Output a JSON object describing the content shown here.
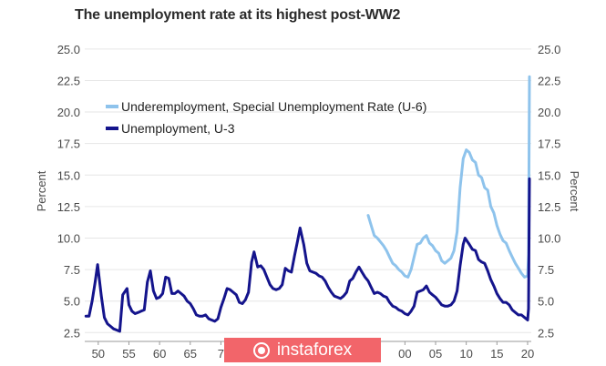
{
  "chart_data": {
    "type": "line",
    "title": "The unemployment rate at its highest post-WW2",
    "ylabel_left": "Percent",
    "ylabel_right": "Percent",
    "ylim": [
      1.8,
      26.0
    ],
    "xlim": [
      1947.8,
      2020.6
    ],
    "y_ticks": [
      "2.5",
      "5.0",
      "7.5",
      "10.0",
      "12.5",
      "15.0",
      "17.5",
      "20.0",
      "22.5",
      "25.0"
    ],
    "x_ticks": [
      {
        "value": 1950,
        "label": "50"
      },
      {
        "value": 1955,
        "label": "55"
      },
      {
        "value": 1960,
        "label": "60"
      },
      {
        "value": 1965,
        "label": "65"
      },
      {
        "value": 1970,
        "label": "7"
      },
      {
        "value": 2000,
        "label": "00"
      },
      {
        "value": 2005,
        "label": "05"
      },
      {
        "value": 2010,
        "label": "10"
      },
      {
        "value": 2015,
        "label": "15"
      },
      {
        "value": 2020,
        "label": "20"
      }
    ],
    "grid": true,
    "legend_position": "top-left",
    "series": [
      {
        "name": "Underemployment, Special Unemployment Rate (U-6)",
        "color": "#8ec3ec",
        "points": [
          [
            1994.0,
            11.8
          ],
          [
            1994.5,
            11.0
          ],
          [
            1995.0,
            10.2
          ],
          [
            1995.5,
            10.0
          ],
          [
            1996.0,
            9.7
          ],
          [
            1996.5,
            9.4
          ],
          [
            1997.0,
            9.0
          ],
          [
            1997.5,
            8.5
          ],
          [
            1998.0,
            8.0
          ],
          [
            1998.5,
            7.8
          ],
          [
            1999.0,
            7.5
          ],
          [
            1999.5,
            7.3
          ],
          [
            2000.0,
            7.0
          ],
          [
            2000.5,
            6.9
          ],
          [
            2001.0,
            7.5
          ],
          [
            2001.5,
            8.5
          ],
          [
            2002.0,
            9.5
          ],
          [
            2002.5,
            9.6
          ],
          [
            2003.0,
            10.0
          ],
          [
            2003.5,
            10.2
          ],
          [
            2004.0,
            9.6
          ],
          [
            2004.5,
            9.4
          ],
          [
            2005.0,
            9.0
          ],
          [
            2005.5,
            8.8
          ],
          [
            2006.0,
            8.2
          ],
          [
            2006.5,
            8.0
          ],
          [
            2007.0,
            8.2
          ],
          [
            2007.5,
            8.4
          ],
          [
            2008.0,
            9.0
          ],
          [
            2008.5,
            10.5
          ],
          [
            2009.0,
            14.0
          ],
          [
            2009.5,
            16.3
          ],
          [
            2010.0,
            17.0
          ],
          [
            2010.5,
            16.8
          ],
          [
            2011.0,
            16.2
          ],
          [
            2011.5,
            16.0
          ],
          [
            2012.0,
            15.0
          ],
          [
            2012.5,
            14.8
          ],
          [
            2013.0,
            14.0
          ],
          [
            2013.5,
            13.8
          ],
          [
            2014.0,
            12.5
          ],
          [
            2014.5,
            12.0
          ],
          [
            2015.0,
            11.0
          ],
          [
            2015.5,
            10.3
          ],
          [
            2016.0,
            9.8
          ],
          [
            2016.5,
            9.6
          ],
          [
            2017.0,
            9.0
          ],
          [
            2017.5,
            8.5
          ],
          [
            2018.0,
            8.0
          ],
          [
            2018.5,
            7.6
          ],
          [
            2019.0,
            7.2
          ],
          [
            2019.5,
            6.9
          ],
          [
            2020.0,
            7.0
          ],
          [
            2020.15,
            8.7
          ],
          [
            2020.3,
            22.8
          ]
        ]
      },
      {
        "name": "Unemployment, U-3",
        "color": "#14148c",
        "points": [
          [
            1948.0,
            3.8
          ],
          [
            1948.5,
            3.8
          ],
          [
            1949.0,
            5.0
          ],
          [
            1949.5,
            6.5
          ],
          [
            1949.9,
            7.9
          ],
          [
            1950.5,
            5.4
          ],
          [
            1951.0,
            3.7
          ],
          [
            1951.5,
            3.2
          ],
          [
            1952.0,
            3.0
          ],
          [
            1952.5,
            2.8
          ],
          [
            1953.0,
            2.7
          ],
          [
            1953.5,
            2.6
          ],
          [
            1954.0,
            5.5
          ],
          [
            1954.7,
            6.0
          ],
          [
            1955.0,
            4.7
          ],
          [
            1955.5,
            4.2
          ],
          [
            1956.0,
            4.0
          ],
          [
            1956.5,
            4.1
          ],
          [
            1957.0,
            4.2
          ],
          [
            1957.5,
            4.3
          ],
          [
            1958.0,
            6.5
          ],
          [
            1958.5,
            7.4
          ],
          [
            1959.0,
            5.8
          ],
          [
            1959.5,
            5.2
          ],
          [
            1960.0,
            5.3
          ],
          [
            1960.5,
            5.6
          ],
          [
            1961.0,
            6.9
          ],
          [
            1961.5,
            6.8
          ],
          [
            1962.0,
            5.6
          ],
          [
            1962.5,
            5.6
          ],
          [
            1963.0,
            5.8
          ],
          [
            1963.5,
            5.6
          ],
          [
            1964.0,
            5.4
          ],
          [
            1964.5,
            5.0
          ],
          [
            1965.0,
            4.8
          ],
          [
            1965.5,
            4.4
          ],
          [
            1966.0,
            3.9
          ],
          [
            1966.5,
            3.8
          ],
          [
            1967.0,
            3.8
          ],
          [
            1967.5,
            3.9
          ],
          [
            1968.0,
            3.6
          ],
          [
            1968.5,
            3.5
          ],
          [
            1969.0,
            3.4
          ],
          [
            1969.5,
            3.6
          ],
          [
            1970.0,
            4.5
          ],
          [
            1970.5,
            5.2
          ],
          [
            1971.0,
            6.0
          ],
          [
            1971.5,
            5.9
          ],
          [
            1972.0,
            5.7
          ],
          [
            1972.5,
            5.5
          ],
          [
            1973.0,
            4.9
          ],
          [
            1973.5,
            4.8
          ],
          [
            1974.0,
            5.1
          ],
          [
            1974.5,
            5.7
          ],
          [
            1975.0,
            8.1
          ],
          [
            1975.4,
            8.9
          ],
          [
            1976.0,
            7.7
          ],
          [
            1976.5,
            7.8
          ],
          [
            1977.0,
            7.5
          ],
          [
            1977.5,
            6.9
          ],
          [
            1978.0,
            6.3
          ],
          [
            1978.5,
            6.0
          ],
          [
            1979.0,
            5.9
          ],
          [
            1979.5,
            6.0
          ],
          [
            1980.0,
            6.3
          ],
          [
            1980.5,
            7.6
          ],
          [
            1981.0,
            7.4
          ],
          [
            1981.5,
            7.3
          ],
          [
            1982.0,
            8.6
          ],
          [
            1982.5,
            9.8
          ],
          [
            1982.9,
            10.8
          ],
          [
            1983.5,
            9.5
          ],
          [
            1984.0,
            8.0
          ],
          [
            1984.5,
            7.4
          ],
          [
            1985.0,
            7.3
          ],
          [
            1985.5,
            7.2
          ],
          [
            1986.0,
            7.0
          ],
          [
            1986.5,
            6.9
          ],
          [
            1987.0,
            6.6
          ],
          [
            1987.5,
            6.1
          ],
          [
            1988.0,
            5.7
          ],
          [
            1988.5,
            5.4
          ],
          [
            1989.0,
            5.3
          ],
          [
            1989.5,
            5.2
          ],
          [
            1990.0,
            5.4
          ],
          [
            1990.5,
            5.7
          ],
          [
            1991.0,
            6.6
          ],
          [
            1991.5,
            6.8
          ],
          [
            1992.0,
            7.3
          ],
          [
            1992.5,
            7.7
          ],
          [
            1993.0,
            7.3
          ],
          [
            1993.5,
            6.9
          ],
          [
            1994.0,
            6.6
          ],
          [
            1994.5,
            6.1
          ],
          [
            1995.0,
            5.6
          ],
          [
            1995.5,
            5.7
          ],
          [
            1996.0,
            5.6
          ],
          [
            1996.5,
            5.4
          ],
          [
            1997.0,
            5.3
          ],
          [
            1997.5,
            4.9
          ],
          [
            1998.0,
            4.6
          ],
          [
            1998.5,
            4.5
          ],
          [
            1999.0,
            4.3
          ],
          [
            1999.5,
            4.2
          ],
          [
            2000.0,
            4.0
          ],
          [
            2000.5,
            3.9
          ],
          [
            2001.0,
            4.2
          ],
          [
            2001.5,
            4.6
          ],
          [
            2002.0,
            5.7
          ],
          [
            2002.5,
            5.8
          ],
          [
            2003.0,
            5.9
          ],
          [
            2003.5,
            6.2
          ],
          [
            2004.0,
            5.7
          ],
          [
            2004.5,
            5.5
          ],
          [
            2005.0,
            5.3
          ],
          [
            2005.5,
            5.0
          ],
          [
            2006.0,
            4.7
          ],
          [
            2006.5,
            4.6
          ],
          [
            2007.0,
            4.6
          ],
          [
            2007.5,
            4.7
          ],
          [
            2008.0,
            5.0
          ],
          [
            2008.5,
            5.8
          ],
          [
            2009.0,
            7.8
          ],
          [
            2009.5,
            9.5
          ],
          [
            2009.8,
            10.0
          ],
          [
            2010.5,
            9.5
          ],
          [
            2011.0,
            9.1
          ],
          [
            2011.5,
            9.0
          ],
          [
            2012.0,
            8.3
          ],
          [
            2012.5,
            8.1
          ],
          [
            2013.0,
            8.0
          ],
          [
            2013.5,
            7.4
          ],
          [
            2014.0,
            6.7
          ],
          [
            2014.5,
            6.2
          ],
          [
            2015.0,
            5.6
          ],
          [
            2015.5,
            5.2
          ],
          [
            2016.0,
            4.9
          ],
          [
            2016.5,
            4.9
          ],
          [
            2017.0,
            4.7
          ],
          [
            2017.5,
            4.3
          ],
          [
            2018.0,
            4.1
          ],
          [
            2018.5,
            3.9
          ],
          [
            2019.0,
            3.9
          ],
          [
            2019.5,
            3.7
          ],
          [
            2020.0,
            3.5
          ],
          [
            2020.15,
            4.4
          ],
          [
            2020.3,
            14.7
          ]
        ]
      }
    ]
  },
  "watermark": {
    "text": "instaforex",
    "color": "#f2656a"
  }
}
